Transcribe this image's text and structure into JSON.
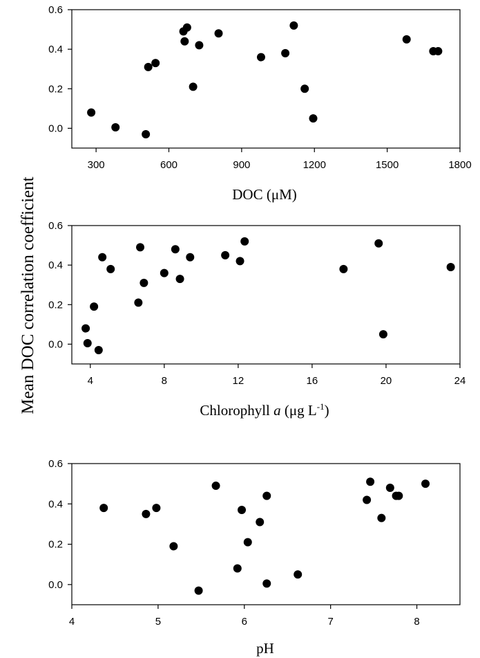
{
  "shared_ylabel": "Mean DOC correlation coefficient",
  "chart_data": [
    {
      "type": "scatter",
      "xlabel": "DOC (μM)",
      "xlim": [
        200,
        1800
      ],
      "ylim": [
        -0.1,
        0.6
      ],
      "xticks": [
        300,
        600,
        900,
        1200,
        1500,
        1800
      ],
      "yticks": [
        0.0,
        0.2,
        0.4,
        0.6
      ],
      "grid": false,
      "points": [
        {
          "x": 280,
          "y": 0.08
        },
        {
          "x": 380,
          "y": 0.005
        },
        {
          "x": 505,
          "y": -0.03
        },
        {
          "x": 515,
          "y": 0.31
        },
        {
          "x": 545,
          "y": 0.33
        },
        {
          "x": 660,
          "y": 0.49
        },
        {
          "x": 665,
          "y": 0.44
        },
        {
          "x": 675,
          "y": 0.51
        },
        {
          "x": 700,
          "y": 0.21
        },
        {
          "x": 725,
          "y": 0.42
        },
        {
          "x": 805,
          "y": 0.48
        },
        {
          "x": 980,
          "y": 0.36
        },
        {
          "x": 1080,
          "y": 0.38
        },
        {
          "x": 1115,
          "y": 0.52
        },
        {
          "x": 1160,
          "y": 0.2
        },
        {
          "x": 1195,
          "y": 0.05
        },
        {
          "x": 1580,
          "y": 0.45
        },
        {
          "x": 1690,
          "y": 0.39
        },
        {
          "x": 1710,
          "y": 0.39
        }
      ]
    },
    {
      "type": "scatter",
      "xlabel": "Chlorophyll",
      "xlabel_italic": "a",
      "xlabel_unit_open": "(μg L",
      "xlabel_unit_sup": "-1",
      "xlabel_unit_close": ")",
      "xlim": [
        3,
        24
      ],
      "ylim": [
        -0.1,
        0.6
      ],
      "xticks": [
        4,
        8,
        12,
        16,
        20,
        24
      ],
      "yticks": [
        0.0,
        0.2,
        0.4,
        0.6
      ],
      "grid": false,
      "points": [
        {
          "x": 3.75,
          "y": 0.08
        },
        {
          "x": 3.85,
          "y": 0.005
        },
        {
          "x": 4.2,
          "y": 0.19
        },
        {
          "x": 4.45,
          "y": -0.03
        },
        {
          "x": 4.65,
          "y": 0.44
        },
        {
          "x": 5.1,
          "y": 0.38
        },
        {
          "x": 6.6,
          "y": 0.21
        },
        {
          "x": 6.7,
          "y": 0.49
        },
        {
          "x": 6.9,
          "y": 0.31
        },
        {
          "x": 8.0,
          "y": 0.36
        },
        {
          "x": 8.6,
          "y": 0.48
        },
        {
          "x": 8.85,
          "y": 0.33
        },
        {
          "x": 9.4,
          "y": 0.44
        },
        {
          "x": 11.3,
          "y": 0.45
        },
        {
          "x": 12.1,
          "y": 0.42
        },
        {
          "x": 12.35,
          "y": 0.52
        },
        {
          "x": 17.7,
          "y": 0.38
        },
        {
          "x": 19.6,
          "y": 0.51
        },
        {
          "x": 19.85,
          "y": 0.05
        },
        {
          "x": 23.5,
          "y": 0.39
        }
      ]
    },
    {
      "type": "scatter",
      "xlabel": "pH",
      "xlim": [
        4,
        8.5
      ],
      "ylim": [
        -0.1,
        0.6
      ],
      "xticks": [
        4,
        5,
        6,
        7,
        8
      ],
      "yticks": [
        0.0,
        0.2,
        0.4,
        0.6
      ],
      "grid": false,
      "points": [
        {
          "x": 4.37,
          "y": 0.38
        },
        {
          "x": 4.86,
          "y": 0.35
        },
        {
          "x": 4.98,
          "y": 0.38
        },
        {
          "x": 5.18,
          "y": 0.19
        },
        {
          "x": 5.47,
          "y": -0.03
        },
        {
          "x": 5.67,
          "y": 0.49
        },
        {
          "x": 5.92,
          "y": 0.08
        },
        {
          "x": 5.97,
          "y": 0.37
        },
        {
          "x": 6.04,
          "y": 0.21
        },
        {
          "x": 6.18,
          "y": 0.31
        },
        {
          "x": 6.26,
          "y": 0.44
        },
        {
          "x": 6.26,
          "y": 0.005
        },
        {
          "x": 6.62,
          "y": 0.05
        },
        {
          "x": 7.42,
          "y": 0.42
        },
        {
          "x": 7.46,
          "y": 0.51
        },
        {
          "x": 7.59,
          "y": 0.33
        },
        {
          "x": 7.69,
          "y": 0.48
        },
        {
          "x": 7.76,
          "y": 0.44
        },
        {
          "x": 7.79,
          "y": 0.44
        },
        {
          "x": 8.1,
          "y": 0.5
        }
      ]
    }
  ]
}
